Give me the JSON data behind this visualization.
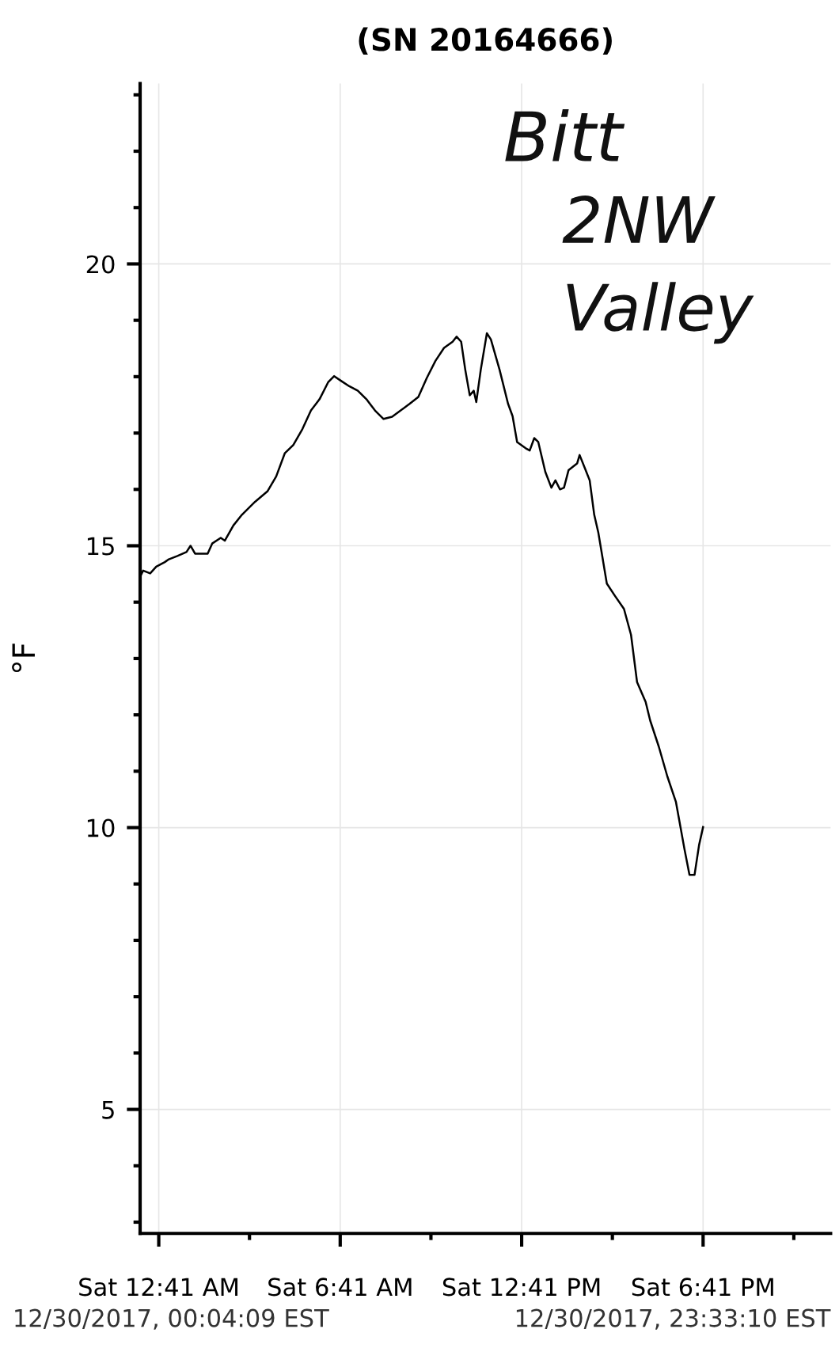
{
  "chart_data": {
    "type": "line",
    "title": "(SN 20164666)",
    "ylabel": "°F",
    "annotations": [
      "12/30/2017, 00:04:09 EST",
      "12/30/2017, 23:33:10 EST",
      "Bitt",
      "2NW",
      "Valley"
    ],
    "series": [
      {
        "color": "#000000",
        "x": [
          "2017-12-30T00:04",
          "2017-12-30T00:10",
          "2017-12-30T00:24",
          "2017-12-30T00:36",
          "2017-12-30T00:53",
          "2017-12-30T01:01",
          "2017-12-30T01:18",
          "2017-12-30T01:36",
          "2017-12-30T01:44",
          "2017-12-30T01:53",
          "2017-12-30T02:18",
          "2017-12-30T02:27",
          "2017-12-30T02:44",
          "2017-12-30T02:52",
          "2017-12-30T03:09",
          "2017-12-30T03:26",
          "2017-12-30T03:52",
          "2017-12-30T04:17",
          "2017-12-30T04:34",
          "2017-12-30T04:51",
          "2017-12-30T05:08",
          "2017-12-30T05:26",
          "2017-12-30T05:43",
          "2017-12-30T06:00",
          "2017-12-30T06:17",
          "2017-12-30T06:29",
          "2017-12-30T06:42",
          "2017-12-30T06:59",
          "2017-12-30T07:16",
          "2017-12-30T07:33",
          "2017-12-30T07:50",
          "2017-12-30T08:07",
          "2017-12-30T08:24",
          "2017-12-30T08:41",
          "2017-12-30T08:59",
          "2017-12-30T09:16",
          "2017-12-30T09:33",
          "2017-12-30T09:50",
          "2017-12-30T10:07",
          "2017-12-30T10:24",
          "2017-12-30T10:32",
          "2017-12-30T10:41",
          "2017-12-30T10:49",
          "2017-12-30T10:58",
          "2017-12-30T11:06",
          "2017-12-30T11:11",
          "2017-12-30T11:20",
          "2017-12-30T11:32",
          "2017-12-30T11:40",
          "2017-12-30T11:57",
          "2017-12-30T12:14",
          "2017-12-30T12:23",
          "2017-12-30T12:32",
          "2017-12-30T12:49",
          "2017-12-30T12:57",
          "2017-12-30T13:06",
          "2017-12-30T13:14",
          "2017-12-30T13:28",
          "2017-12-30T13:40",
          "2017-12-30T13:48",
          "2017-12-30T13:57",
          "2017-12-30T14:05",
          "2017-12-30T14:14",
          "2017-12-30T14:31",
          "2017-12-30T14:36",
          "2017-12-30T14:48",
          "2017-12-30T14:56",
          "2017-12-30T15:05",
          "2017-12-30T15:13",
          "2017-12-30T15:30",
          "2017-12-30T15:47",
          "2017-12-30T16:04",
          "2017-12-30T16:18",
          "2017-12-30T16:30",
          "2017-12-30T16:47",
          "2017-12-30T16:56",
          "2017-12-30T17:13",
          "2017-12-30T17:30",
          "2017-12-30T17:47",
          "2017-12-30T18:04",
          "2017-12-30T18:14",
          "2017-12-30T18:24",
          "2017-12-30T18:33",
          "2017-12-30T18:41"
        ],
        "values": [
          14.45,
          14.56,
          14.51,
          14.63,
          14.71,
          14.76,
          14.82,
          14.89,
          15.0,
          14.86,
          14.86,
          15.04,
          15.14,
          15.09,
          15.36,
          15.55,
          15.78,
          15.97,
          16.23,
          16.64,
          16.79,
          17.07,
          17.4,
          17.6,
          17.9,
          18.01,
          17.93,
          17.83,
          17.75,
          17.6,
          17.4,
          17.25,
          17.29,
          17.4,
          17.52,
          17.64,
          17.98,
          18.28,
          18.51,
          18.62,
          18.71,
          18.62,
          18.13,
          17.67,
          17.75,
          17.55,
          18.13,
          18.77,
          18.66,
          18.13,
          17.52,
          17.3,
          16.84,
          16.73,
          16.69,
          16.91,
          16.84,
          16.31,
          16.03,
          16.16,
          16.0,
          16.03,
          16.34,
          16.46,
          16.61,
          16.34,
          16.16,
          15.55,
          15.24,
          14.33,
          14.1,
          13.88,
          13.42,
          12.58,
          12.23,
          11.9,
          11.44,
          10.91,
          10.46,
          9.62,
          9.16,
          9.16,
          9.69,
          10.01
        ]
      }
    ],
    "xlim": [
      "2017-12-30T00:04",
      "2017-12-30T22:54"
    ],
    "ylim": [
      2.8,
      23.2
    ],
    "xticks": [
      {
        "value": "2017-12-30T00:41",
        "label": "Sat 12:41 AM"
      },
      {
        "value": "2017-12-30T03:41",
        "label": null
      },
      {
        "value": "2017-12-30T06:41",
        "label": "Sat 6:41 AM"
      },
      {
        "value": "2017-12-30T09:41",
        "label": null
      },
      {
        "value": "2017-12-30T12:41",
        "label": "Sat 12:41 PM"
      },
      {
        "value": "2017-12-30T15:41",
        "label": null
      },
      {
        "value": "2017-12-30T18:41",
        "label": "Sat 6:41 PM"
      },
      {
        "value": "2017-12-30T21:41",
        "label": null
      }
    ],
    "yticks": [
      {
        "value": 3,
        "label": null
      },
      {
        "value": 4,
        "label": null
      },
      5,
      {
        "value": 6,
        "label": null
      },
      {
        "value": 7,
        "label": null
      },
      {
        "value": 8,
        "label": null
      },
      {
        "value": 9,
        "label": null
      },
      10,
      {
        "value": 11,
        "label": null
      },
      {
        "value": 12,
        "label": null
      },
      {
        "value": 13,
        "label": null
      },
      {
        "value": 14,
        "label": null
      },
      15,
      {
        "value": 16,
        "label": null
      },
      {
        "value": 17,
        "label": null
      },
      {
        "value": 18,
        "label": null
      },
      {
        "value": 19,
        "label": null
      },
      20,
      {
        "value": 21,
        "label": null
      },
      {
        "value": 22,
        "label": null
      },
      {
        "value": 23,
        "label": null
      }
    ],
    "grid": true,
    "line_style": "solid",
    "marker": "none"
  }
}
